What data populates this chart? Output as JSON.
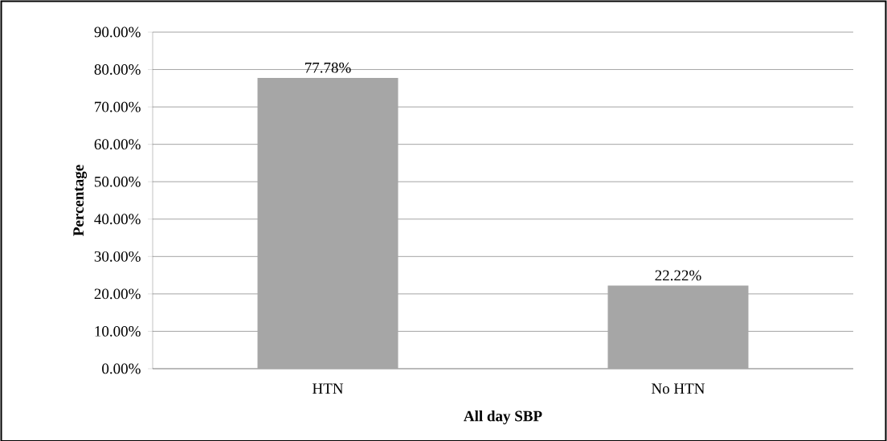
{
  "chart_data": {
    "type": "bar",
    "xlabel": "All day SBP",
    "ylabel": "Percentage",
    "categories": [
      "HTN",
      "No HTN"
    ],
    "values": [
      77.78,
      22.22
    ],
    "value_labels": [
      "77.78%",
      "22.22%"
    ],
    "color": "#a6a6a6",
    "ylim": [
      0,
      90
    ],
    "yticks": [
      {
        "value": 0,
        "label": "0.00%"
      },
      {
        "value": 10,
        "label": "10.00%"
      },
      {
        "value": 20,
        "label": "20.00%"
      },
      {
        "value": 30,
        "label": "30.00%"
      },
      {
        "value": 40,
        "label": "40.00%"
      },
      {
        "value": 50,
        "label": "50.00%"
      },
      {
        "value": 60,
        "label": "60.00%"
      },
      {
        "value": 70,
        "label": "70.00%"
      },
      {
        "value": 80,
        "label": "80.00%"
      },
      {
        "value": 90,
        "label": "90.00%"
      }
    ],
    "grid": "y"
  }
}
